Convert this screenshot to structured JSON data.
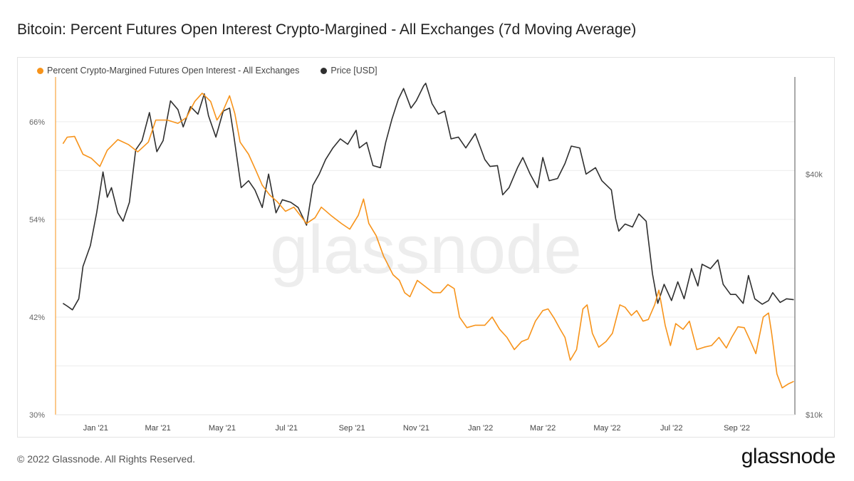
{
  "title": "Bitcoin: Percent Futures Open Interest Crypto-Margined - All Exchanges (7d Moving Average)",
  "footer": "© 2022 Glassnode. All Rights Reserved.",
  "brand": "glassnode",
  "watermark": "glassnode",
  "chart_data": {
    "type": "line",
    "title": "Bitcoin: Percent Futures Open Interest Crypto-Margined - All Exchanges (7d Moving Average)",
    "xlabel": "",
    "x_ticks": [
      "Jan '21",
      "Mar '21",
      "May '21",
      "Jul '21",
      "Sep '21",
      "Nov '21",
      "Jan '22",
      "Mar '22",
      "May '22",
      "Jul '22",
      "Sep '22"
    ],
    "y_left": {
      "ticks": [
        "30%",
        "42%",
        "54%",
        "66%"
      ],
      "range": [
        30,
        71.5
      ],
      "unit": "%"
    },
    "y_right": {
      "ticks": [
        "$10k",
        "$40k"
      ],
      "scale": "log",
      "range": [
        10000,
        70000
      ]
    },
    "grid": true,
    "legend_position": "top-left",
    "series": [
      {
        "name": "Percent Crypto-Margined Futures Open Interest - All Exchanges",
        "color": "#f7931a",
        "axis": "left",
        "points": [
          [
            "2020-12-01",
            63.3
          ],
          [
            "2020-12-05",
            64.1
          ],
          [
            "2020-12-12",
            64.2
          ],
          [
            "2020-12-20",
            62.0
          ],
          [
            "2020-12-28",
            61.5
          ],
          [
            "2021-01-05",
            60.5
          ],
          [
            "2021-01-12",
            62.5
          ],
          [
            "2021-01-22",
            63.8
          ],
          [
            "2021-02-01",
            63.2
          ],
          [
            "2021-02-10",
            62.3
          ],
          [
            "2021-02-20",
            63.5
          ],
          [
            "2021-02-27",
            66.2
          ],
          [
            "2021-03-10",
            66.2
          ],
          [
            "2021-03-20",
            65.8
          ],
          [
            "2021-03-28",
            66.5
          ],
          [
            "2021-04-05",
            68.5
          ],
          [
            "2021-04-12",
            69.5
          ],
          [
            "2021-04-20",
            68.5
          ],
          [
            "2021-04-26",
            66.2
          ],
          [
            "2021-05-02",
            67.4
          ],
          [
            "2021-05-08",
            69.2
          ],
          [
            "2021-05-13",
            67.0
          ],
          [
            "2021-05-18",
            63.5
          ],
          [
            "2021-05-26",
            62.0
          ],
          [
            "2021-06-02",
            60.0
          ],
          [
            "2021-06-08",
            58.2
          ],
          [
            "2021-06-15",
            57.0
          ],
          [
            "2021-06-22",
            56.2
          ],
          [
            "2021-06-30",
            55.0
          ],
          [
            "2021-07-08",
            55.5
          ],
          [
            "2021-07-14",
            54.5
          ],
          [
            "2021-07-20",
            53.5
          ],
          [
            "2021-07-28",
            54.2
          ],
          [
            "2021-08-03",
            55.5
          ],
          [
            "2021-08-12",
            54.5
          ],
          [
            "2021-08-22",
            53.5
          ],
          [
            "2021-08-30",
            52.8
          ],
          [
            "2021-09-07",
            54.5
          ],
          [
            "2021-09-12",
            56.5
          ],
          [
            "2021-09-17",
            53.5
          ],
          [
            "2021-09-24",
            52.0
          ],
          [
            "2021-10-01",
            49.5
          ],
          [
            "2021-10-10",
            47.2
          ],
          [
            "2021-10-16",
            46.5
          ],
          [
            "2021-10-21",
            45.0
          ],
          [
            "2021-10-26",
            44.5
          ],
          [
            "2021-11-02",
            46.5
          ],
          [
            "2021-11-09",
            45.8
          ],
          [
            "2021-11-17",
            45.0
          ],
          [
            "2021-11-24",
            45.0
          ],
          [
            "2021-12-01",
            46.0
          ],
          [
            "2021-12-07",
            45.5
          ],
          [
            "2021-12-12",
            42.0
          ],
          [
            "2021-12-19",
            40.7
          ],
          [
            "2021-12-27",
            41.0
          ],
          [
            "2022-01-05",
            41.0
          ],
          [
            "2022-01-12",
            42.0
          ],
          [
            "2022-01-19",
            40.5
          ],
          [
            "2022-01-26",
            39.5
          ],
          [
            "2022-02-02",
            38.0
          ],
          [
            "2022-02-09",
            39.0
          ],
          [
            "2022-02-15",
            39.3
          ],
          [
            "2022-02-22",
            41.5
          ],
          [
            "2022-03-01",
            42.8
          ],
          [
            "2022-03-06",
            43.0
          ],
          [
            "2022-03-12",
            41.8
          ],
          [
            "2022-03-17",
            40.6
          ],
          [
            "2022-03-22",
            39.5
          ],
          [
            "2022-03-27",
            36.7
          ],
          [
            "2022-04-02",
            38.0
          ],
          [
            "2022-04-08",
            43.0
          ],
          [
            "2022-04-12",
            43.5
          ],
          [
            "2022-04-17",
            40.0
          ],
          [
            "2022-04-23",
            38.3
          ],
          [
            "2022-04-30",
            39.0
          ],
          [
            "2022-05-06",
            40.0
          ],
          [
            "2022-05-13",
            43.5
          ],
          [
            "2022-05-18",
            43.2
          ],
          [
            "2022-05-24",
            42.2
          ],
          [
            "2022-05-29",
            42.8
          ],
          [
            "2022-06-04",
            41.5
          ],
          [
            "2022-06-09",
            41.7
          ],
          [
            "2022-06-15",
            43.5
          ],
          [
            "2022-06-19",
            45.3
          ],
          [
            "2022-06-25",
            41.0
          ],
          [
            "2022-06-30",
            38.5
          ],
          [
            "2022-07-05",
            41.2
          ],
          [
            "2022-07-12",
            40.5
          ],
          [
            "2022-07-18",
            41.5
          ],
          [
            "2022-07-25",
            38.0
          ],
          [
            "2022-08-01",
            38.3
          ],
          [
            "2022-08-08",
            38.5
          ],
          [
            "2022-08-15",
            39.5
          ],
          [
            "2022-08-22",
            38.2
          ],
          [
            "2022-08-27",
            39.5
          ],
          [
            "2022-09-02",
            40.8
          ],
          [
            "2022-09-08",
            40.7
          ],
          [
            "2022-09-14",
            39.0
          ],
          [
            "2022-09-19",
            37.5
          ],
          [
            "2022-09-26",
            42.0
          ],
          [
            "2022-10-01",
            42.5
          ],
          [
            "2022-10-04",
            40.0
          ],
          [
            "2022-10-09",
            35.0
          ],
          [
            "2022-10-14",
            33.3
          ],
          [
            "2022-10-20",
            33.8
          ],
          [
            "2022-10-25",
            34.1
          ]
        ]
      },
      {
        "name": "Price [USD]",
        "color": "#2f2f2f",
        "axis": "right",
        "points": [
          [
            "2020-12-01",
            19000
          ],
          [
            "2020-12-05",
            18700
          ],
          [
            "2020-12-10",
            18300
          ],
          [
            "2020-12-16",
            19500
          ],
          [
            "2020-12-20",
            23500
          ],
          [
            "2020-12-27",
            26500
          ],
          [
            "2021-01-02",
            32000
          ],
          [
            "2021-01-08",
            40500
          ],
          [
            "2021-01-12",
            35000
          ],
          [
            "2021-01-16",
            37000
          ],
          [
            "2021-01-22",
            32000
          ],
          [
            "2021-01-27",
            30500
          ],
          [
            "2021-02-02",
            34000
          ],
          [
            "2021-02-08",
            46000
          ],
          [
            "2021-02-14",
            48500
          ],
          [
            "2021-02-21",
            57000
          ],
          [
            "2021-02-28",
            45500
          ],
          [
            "2021-03-06",
            48500
          ],
          [
            "2021-03-13",
            61000
          ],
          [
            "2021-03-20",
            58000
          ],
          [
            "2021-03-25",
            52500
          ],
          [
            "2021-04-01",
            59000
          ],
          [
            "2021-04-08",
            56500
          ],
          [
            "2021-04-14",
            63500
          ],
          [
            "2021-04-18",
            56000
          ],
          [
            "2021-04-25",
            49500
          ],
          [
            "2021-05-02",
            57500
          ],
          [
            "2021-05-08",
            58500
          ],
          [
            "2021-05-12",
            50000
          ],
          [
            "2021-05-19",
            37000
          ],
          [
            "2021-05-26",
            38500
          ],
          [
            "2021-06-01",
            36500
          ],
          [
            "2021-06-08",
            33000
          ],
          [
            "2021-06-14",
            40000
          ],
          [
            "2021-06-21",
            32000
          ],
          [
            "2021-06-27",
            34500
          ],
          [
            "2021-07-05",
            34000
          ],
          [
            "2021-07-12",
            33000
          ],
          [
            "2021-07-20",
            29800
          ],
          [
            "2021-07-26",
            37500
          ],
          [
            "2021-08-01",
            40000
          ],
          [
            "2021-08-07",
            43500
          ],
          [
            "2021-08-14",
            46500
          ],
          [
            "2021-08-21",
            49000
          ],
          [
            "2021-08-28",
            47500
          ],
          [
            "2021-09-05",
            51500
          ],
          [
            "2021-09-08",
            46500
          ],
          [
            "2021-09-15",
            48000
          ],
          [
            "2021-09-21",
            42000
          ],
          [
            "2021-09-28",
            41500
          ],
          [
            "2021-10-03",
            48000
          ],
          [
            "2021-10-09",
            55000
          ],
          [
            "2021-10-15",
            61500
          ],
          [
            "2021-10-20",
            65500
          ],
          [
            "2021-10-27",
            58500
          ],
          [
            "2021-11-01",
            61000
          ],
          [
            "2021-11-08",
            66500
          ],
          [
            "2021-11-10",
            67500
          ],
          [
            "2021-11-16",
            60000
          ],
          [
            "2021-11-22",
            56500
          ],
          [
            "2021-11-28",
            57500
          ],
          [
            "2021-12-04",
            49000
          ],
          [
            "2021-12-11",
            49500
          ],
          [
            "2021-12-18",
            46500
          ],
          [
            "2021-12-27",
            50500
          ],
          [
            "2022-01-05",
            43500
          ],
          [
            "2022-01-10",
            41800
          ],
          [
            "2022-01-17",
            42000
          ],
          [
            "2022-01-22",
            35500
          ],
          [
            "2022-01-28",
            37000
          ],
          [
            "2022-02-05",
            41500
          ],
          [
            "2022-02-10",
            44000
          ],
          [
            "2022-02-17",
            40000
          ],
          [
            "2022-02-24",
            37000
          ],
          [
            "2022-03-01",
            44000
          ],
          [
            "2022-03-07",
            38500
          ],
          [
            "2022-03-15",
            39000
          ],
          [
            "2022-03-22",
            42500
          ],
          [
            "2022-03-28",
            47000
          ],
          [
            "2022-04-05",
            46500
          ],
          [
            "2022-04-11",
            40000
          ],
          [
            "2022-04-20",
            41500
          ],
          [
            "2022-04-26",
            38500
          ],
          [
            "2022-05-05",
            36500
          ],
          [
            "2022-05-09",
            31000
          ],
          [
            "2022-05-12",
            28800
          ],
          [
            "2022-05-18",
            30000
          ],
          [
            "2022-05-25",
            29500
          ],
          [
            "2022-05-31",
            31800
          ],
          [
            "2022-06-07",
            30500
          ],
          [
            "2022-06-13",
            22500
          ],
          [
            "2022-06-18",
            19000
          ],
          [
            "2022-06-24",
            21200
          ],
          [
            "2022-07-01",
            19300
          ],
          [
            "2022-07-07",
            21500
          ],
          [
            "2022-07-13",
            19500
          ],
          [
            "2022-07-20",
            23200
          ],
          [
            "2022-07-26",
            21000
          ],
          [
            "2022-07-30",
            23800
          ],
          [
            "2022-08-07",
            23200
          ],
          [
            "2022-08-14",
            24400
          ],
          [
            "2022-08-19",
            21200
          ],
          [
            "2022-08-26",
            20000
          ],
          [
            "2022-08-31",
            20000
          ],
          [
            "2022-09-07",
            19000
          ],
          [
            "2022-09-12",
            22300
          ],
          [
            "2022-09-18",
            19500
          ],
          [
            "2022-09-25",
            18900
          ],
          [
            "2022-10-01",
            19300
          ],
          [
            "2022-10-05",
            20200
          ],
          [
            "2022-10-12",
            19100
          ],
          [
            "2022-10-18",
            19500
          ],
          [
            "2022-10-25",
            19400
          ]
        ]
      }
    ]
  }
}
